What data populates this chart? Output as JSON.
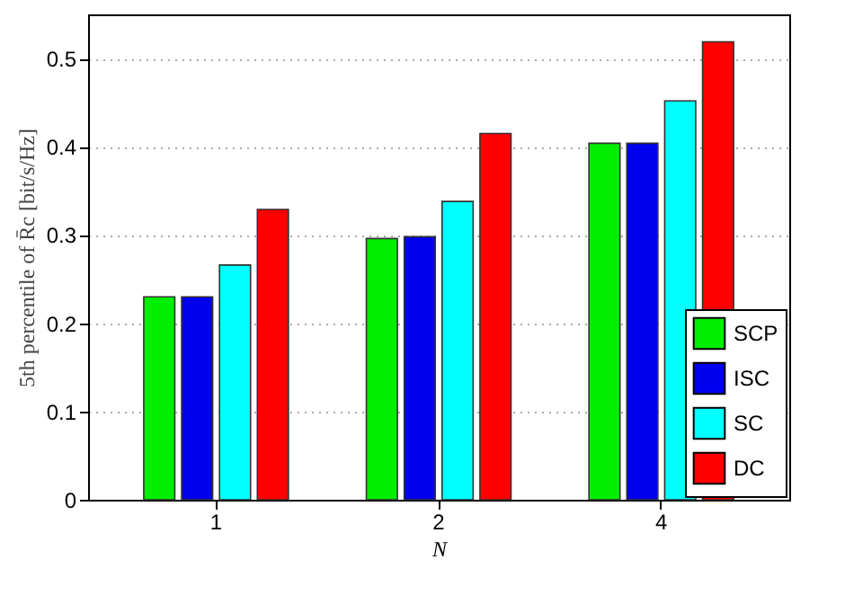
{
  "chart_data": {
    "type": "bar",
    "xlabel": "N",
    "ylabel": "5th percentile of R̄c [bit/s/Hz]",
    "categories": [
      "1",
      "2",
      "4"
    ],
    "series": [
      {
        "name": "SCP",
        "color": "#00ee00",
        "values": [
          0.23,
          0.296,
          0.404
        ]
      },
      {
        "name": "ISC",
        "color": "#0000ee",
        "values": [
          0.23,
          0.298,
          0.404
        ]
      },
      {
        "name": "SC",
        "color": "#00ffff",
        "values": [
          0.266,
          0.338,
          0.452
        ]
      },
      {
        "name": "DC",
        "color": "#ff0000",
        "values": [
          0.329,
          0.415,
          0.519
        ]
      }
    ],
    "ylim": [
      0,
      0.55
    ],
    "yticks": [
      0,
      0.1,
      0.2,
      0.3,
      0.4,
      0.5
    ],
    "grid": "y",
    "legend": "bottom right"
  }
}
